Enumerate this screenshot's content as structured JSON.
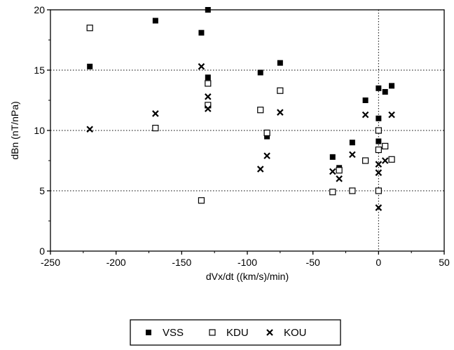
{
  "chart_data": {
    "type": "scatter",
    "title": "",
    "xlabel": "dVx/dt ((km/s)/min)",
    "ylabel": "dBn (nT/nPa)",
    "xlim": [
      -250,
      50
    ],
    "ylim": [
      0,
      20
    ],
    "xticks": [
      -250,
      -200,
      -150,
      -100,
      -50,
      0,
      50
    ],
    "yticks": [
      0,
      5,
      10,
      15,
      20
    ],
    "grid": "dotted horizontal at 5, 10, 15 and dotted vertical at 0",
    "legend_position": "bottom-center",
    "series": [
      {
        "name": "VSS",
        "marker": "filled-square",
        "color": "#000000",
        "points": [
          [
            -220,
            15.3
          ],
          [
            -170,
            19.1
          ],
          [
            -135,
            18.1
          ],
          [
            -130,
            20.0
          ],
          [
            -130,
            14.4
          ],
          [
            -90,
            14.8
          ],
          [
            -85,
            9.5
          ],
          [
            -75,
            15.6
          ],
          [
            -35,
            7.8
          ],
          [
            -30,
            6.9
          ],
          [
            -20,
            9.0
          ],
          [
            -10,
            12.5
          ],
          [
            0,
            13.5
          ],
          [
            0,
            11.0
          ],
          [
            0,
            9.1
          ],
          [
            5,
            13.2
          ],
          [
            10,
            13.7
          ]
        ]
      },
      {
        "name": "KDU",
        "marker": "open-square",
        "color": "#000000",
        "points": [
          [
            -220,
            18.5
          ],
          [
            -170,
            10.2
          ],
          [
            -135,
            4.2
          ],
          [
            -130,
            13.9
          ],
          [
            -130,
            12.1
          ],
          [
            -90,
            11.7
          ],
          [
            -85,
            9.8
          ],
          [
            -75,
            13.3
          ],
          [
            -35,
            4.9
          ],
          [
            -30,
            6.7
          ],
          [
            -20,
            5.0
          ],
          [
            -10,
            7.5
          ],
          [
            0,
            10.0
          ],
          [
            0,
            8.4
          ],
          [
            0,
            5.0
          ],
          [
            5,
            8.7
          ],
          [
            10,
            7.6
          ]
        ]
      },
      {
        "name": "KOU",
        "marker": "x",
        "color": "#000000",
        "points": [
          [
            -220,
            10.1
          ],
          [
            -170,
            11.4
          ],
          [
            -135,
            15.3
          ],
          [
            -130,
            12.8
          ],
          [
            -130,
            11.8
          ],
          [
            -90,
            6.8
          ],
          [
            -85,
            7.9
          ],
          [
            -75,
            11.5
          ],
          [
            -35,
            6.6
          ],
          [
            -30,
            6.0
          ],
          [
            -20,
            8.0
          ],
          [
            -10,
            11.3
          ],
          [
            0,
            7.2
          ],
          [
            0,
            6.5
          ],
          [
            0,
            3.6
          ],
          [
            5,
            7.5
          ],
          [
            10,
            11.3
          ]
        ]
      }
    ]
  }
}
